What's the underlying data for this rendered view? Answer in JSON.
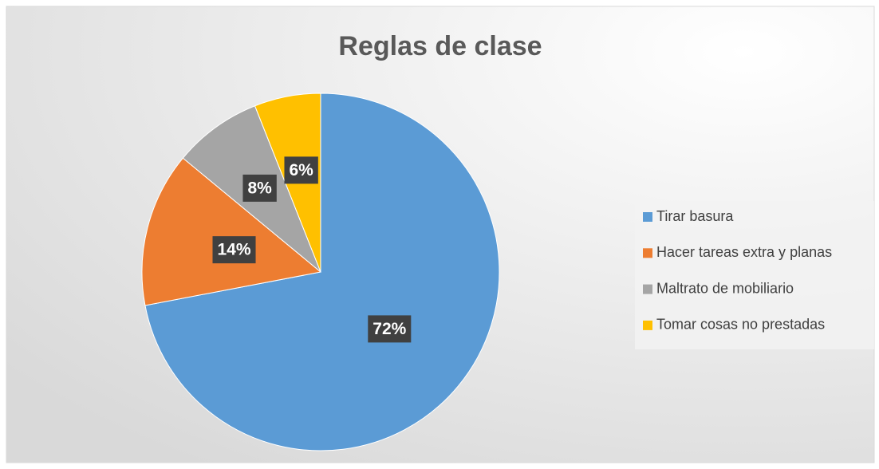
{
  "chart_data": {
    "type": "pie",
    "title": "Reglas de clase",
    "categories": [
      "Tirar basura",
      "Hacer tareas extra y planas",
      "Maltrato de mobiliario",
      "Tomar cosas no prestadas"
    ],
    "values": [
      72,
      14,
      8,
      6
    ],
    "value_labels": [
      "72%",
      "14%",
      "8%",
      "6%"
    ],
    "colors": [
      "#5b9bd5",
      "#ed7d31",
      "#a5a5a5",
      "#ffc000"
    ],
    "legend": "right"
  }
}
